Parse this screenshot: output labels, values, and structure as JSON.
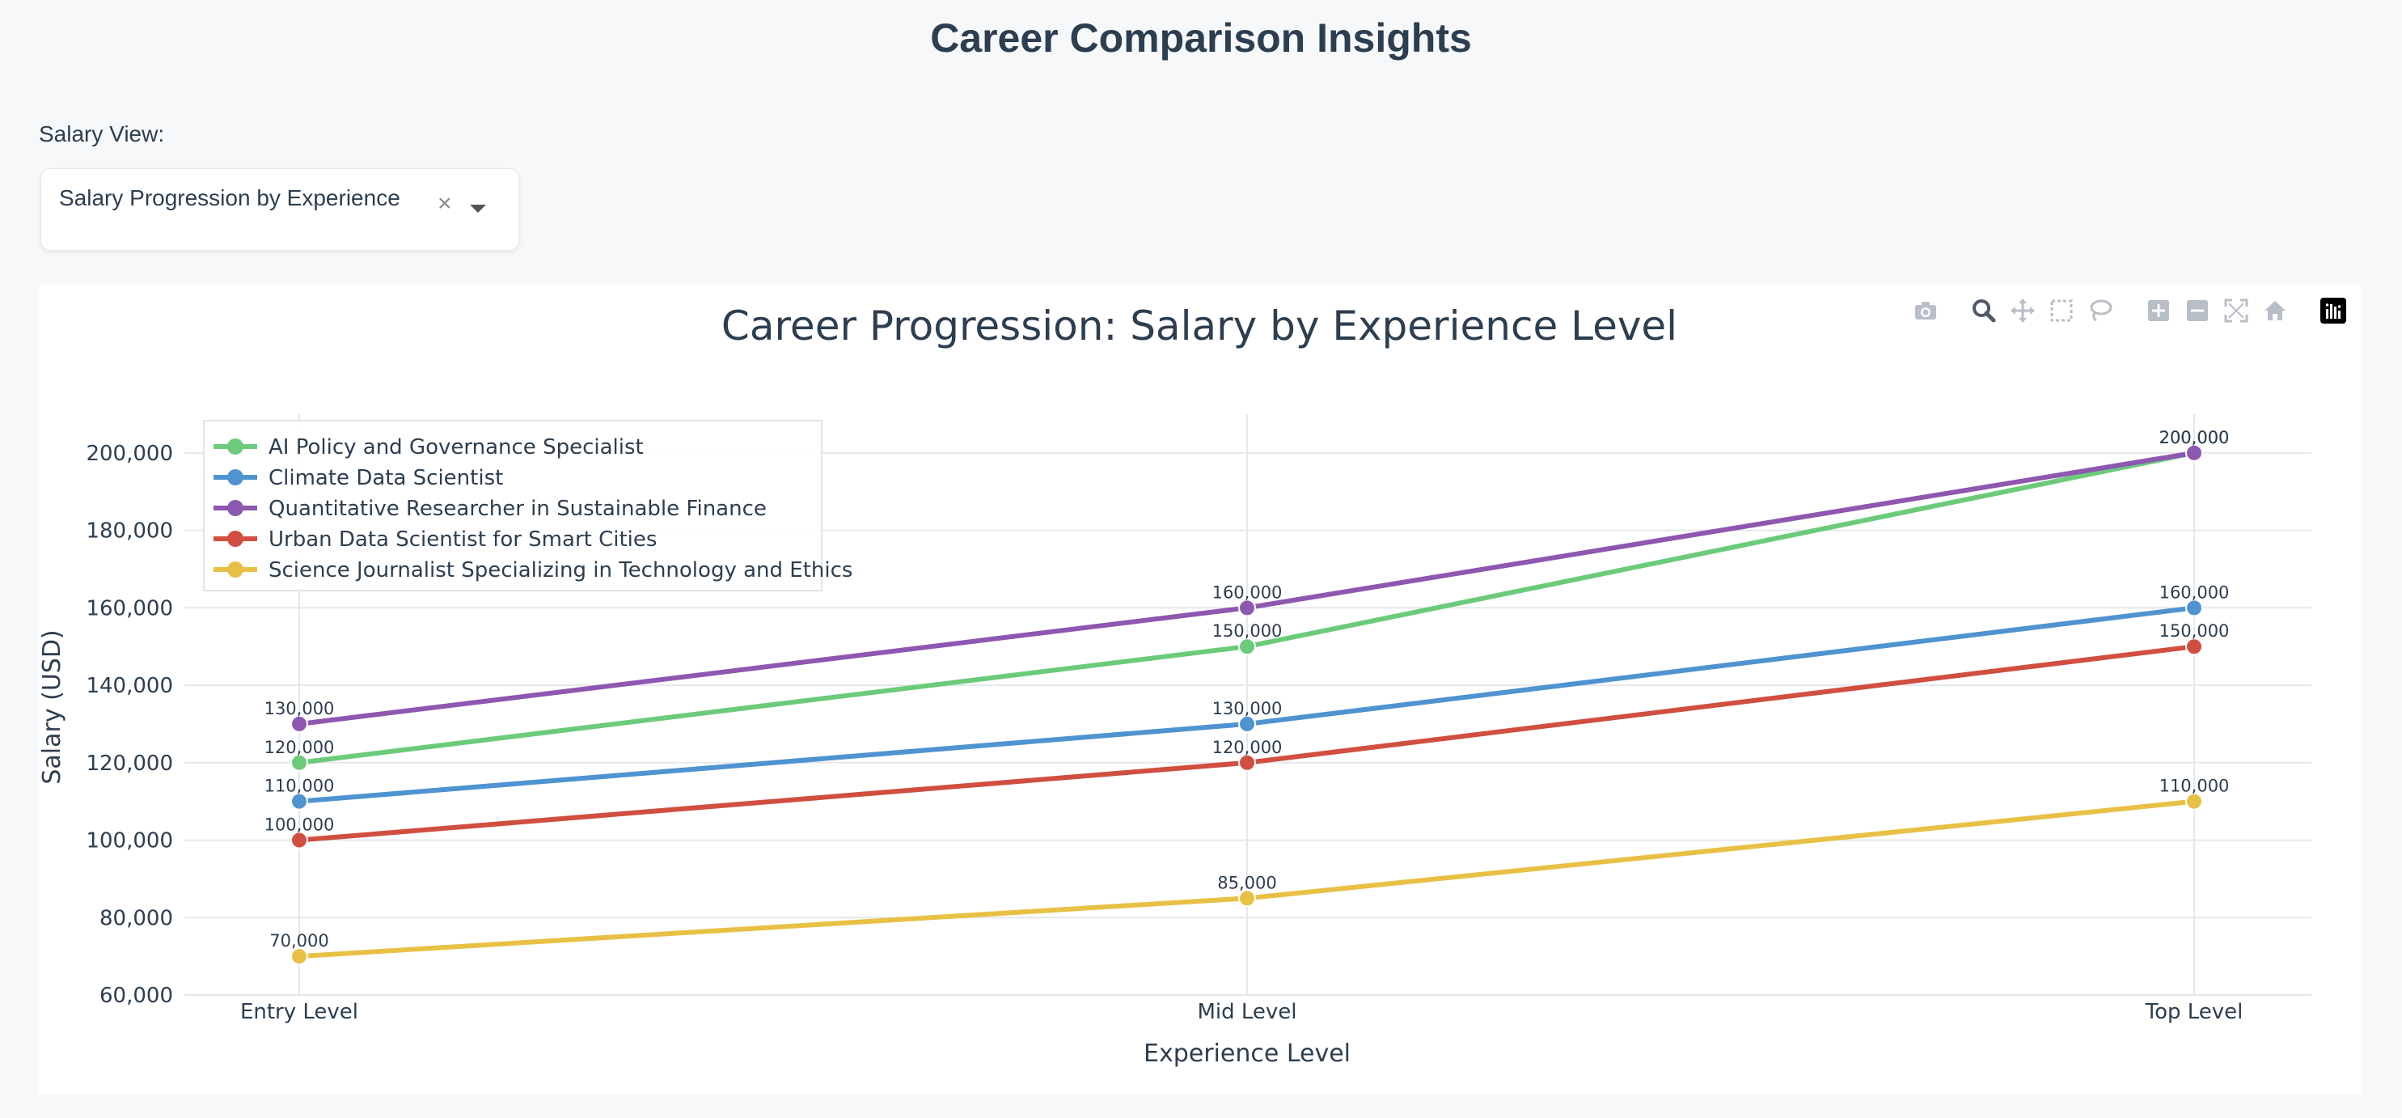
{
  "page": {
    "title": "Career Comparison Insights"
  },
  "controls": {
    "salary_view_label": "Salary View:",
    "dropdown_value": "Salary Progression by Experience",
    "clear_symbol": "×"
  },
  "modebar": {
    "icons": [
      "camera-icon",
      "zoom-icon",
      "pan-icon",
      "box-select-icon",
      "lasso-select-icon",
      "zoom-in-icon",
      "zoom-out-icon",
      "autoscale-icon",
      "reset-axes-icon",
      "plotly-logo-icon"
    ]
  },
  "chart_data": {
    "type": "line",
    "title": "Career Progression: Salary by Experience Level",
    "xlabel": "Experience Level",
    "ylabel": "Salary (USD)",
    "categories": [
      "Entry Level",
      "Mid Level",
      "Top Level"
    ],
    "ylim": [
      60000,
      210000
    ],
    "yticks": [
      60000,
      80000,
      100000,
      120000,
      140000,
      160000,
      180000,
      200000
    ],
    "grid": true,
    "legend_position": "top-left",
    "series": [
      {
        "name": "AI Policy and Governance Specialist",
        "values": [
          120000,
          150000,
          200000
        ],
        "color": "#6ccb7b"
      },
      {
        "name": "Climate Data Scientist",
        "values": [
          110000,
          130000,
          160000
        ],
        "color": "#4f93d0"
      },
      {
        "name": "Quantitative Researcher in Sustainable Finance",
        "values": [
          130000,
          160000,
          200000
        ],
        "color": "#8e57b0"
      },
      {
        "name": "Urban Data Scientist for Smart Cities",
        "values": [
          100000,
          120000,
          150000
        ],
        "color": "#d04f40"
      },
      {
        "name": "Science Journalist Specializing in Technology and Ethics",
        "values": [
          70000,
          85000,
          110000
        ],
        "color": "#e8c045"
      }
    ]
  }
}
